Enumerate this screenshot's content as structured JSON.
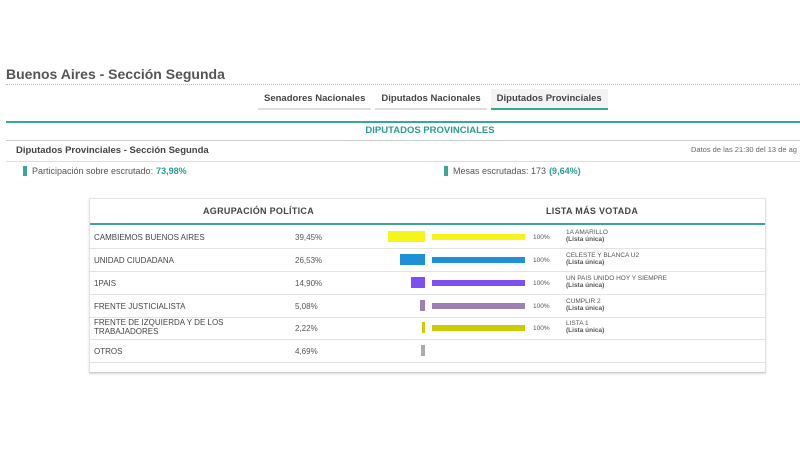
{
  "page": {
    "title": "Buenos Aires - Sección Segunda"
  },
  "tabs": [
    {
      "label": "Senadores Nacionales",
      "active": false
    },
    {
      "label": "Diputados Nacionales",
      "active": false
    },
    {
      "label": "Diputados Provinciales",
      "active": true
    }
  ],
  "section": {
    "title": "DIPUTADOS PROVINCIALES",
    "subtitle": "Diputados Provinciales - Sección Segunda",
    "date": "Datos de las 21:30 del 13 de ag"
  },
  "stats": {
    "participation_label": "Participación sobre escrutado:",
    "participation_value": "73,98%",
    "mesas_label": "Mesas escrutadas: 173",
    "mesas_value": "(9,64%)"
  },
  "table": {
    "col_left": "AGRUPACIÓN POLÍTICA",
    "col_right": "LISTA MÁS VOTADA",
    "rows": [
      {
        "name": "CAMBIEMOS BUENOS AIRES",
        "pct": "39,45%",
        "share": 39.45,
        "color": "#f5f51b",
        "list_pct": "100%",
        "list_name": "1A AMARILLO",
        "list_sub": "(Lista única)"
      },
      {
        "name": "UNIDAD CIUDADANA",
        "pct": "26,53%",
        "share": 26.53,
        "color": "#1e90d6",
        "list_pct": "100%",
        "list_name": "CELESTE Y BLANCA U2",
        "list_sub": "(Lista única)"
      },
      {
        "name": "1PAIS",
        "pct": "14,90%",
        "share": 14.9,
        "color": "#7b4ff0",
        "list_pct": "100%",
        "list_name": "UN PAIS UNIDO HOY Y SIEMPRE",
        "list_sub": "(Lista única)"
      },
      {
        "name": "FRENTE JUSTICIALISTA",
        "pct": "5,08%",
        "share": 5.08,
        "color": "#9b7fb5",
        "list_pct": "100%",
        "list_name": "CUMPLIR 2",
        "list_sub": "(Lista única)"
      },
      {
        "name": "FRENTE DE IZQUIERDA Y DE LOS TRABAJADORES",
        "pct": "2,22%",
        "share": 2.22,
        "color": "#cccc00",
        "list_pct": "100%",
        "list_name": "LISTA 1",
        "list_sub": "(Lista única)"
      },
      {
        "name": "OTROS",
        "pct": "4,69%",
        "share": 4.69,
        "color": "#aaaaaa",
        "list_pct": "",
        "list_name": "",
        "list_sub": ""
      }
    ]
  }
}
